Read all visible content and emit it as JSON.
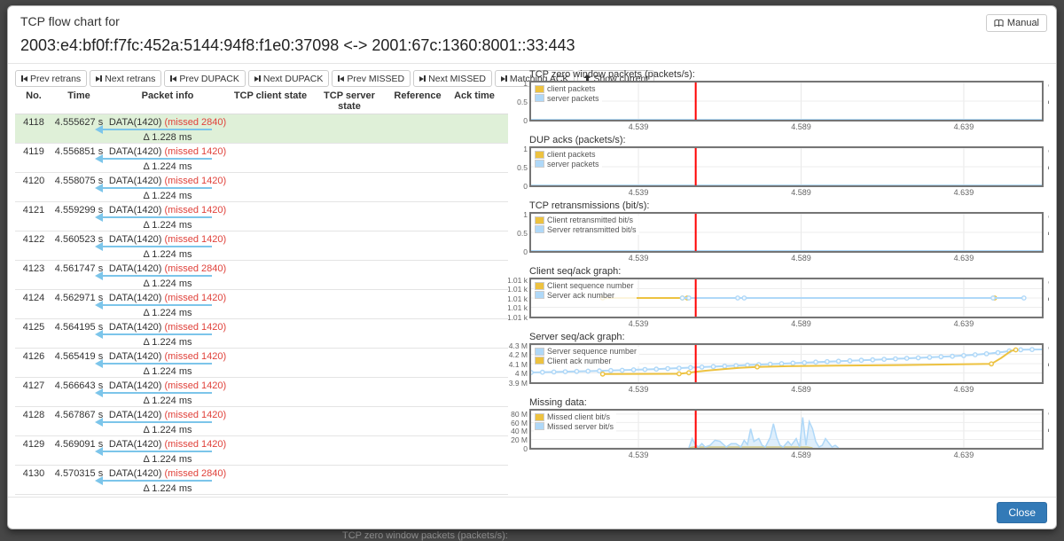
{
  "window": {
    "title": "TCP flow chart for",
    "flow": "2003:e4:bf0f:f7fc:452a:5144:94f8:f1e0:37098 <-> 2001:67c:1360:8001::33:443",
    "manual_label": "Manual",
    "close_label": "Close"
  },
  "background_text": "TCP zero window packets (packets/s):",
  "colors": {
    "accent_blue": "#337ab7",
    "missed_red": "#e0413a",
    "arrow_blue": "#7cc5ea",
    "row_highlight": "#dff0d8",
    "marking_red": "#ff0000",
    "series_yellow": "#edc240",
    "series_blue": "#afd8f8"
  },
  "toolbar": {
    "buttons": [
      {
        "label": "Prev retrans",
        "icon": "step-backward"
      },
      {
        "label": "Next retrans",
        "icon": "step-forward"
      },
      {
        "label": "Prev DUPACK",
        "icon": "step-backward"
      },
      {
        "label": "Next DUPACK",
        "icon": "step-forward"
      },
      {
        "label": "Prev MISSED",
        "icon": "step-backward"
      },
      {
        "label": "Next MISSED",
        "icon": "step-forward"
      },
      {
        "label": "Matching ACK",
        "icon": "step-forward"
      },
      {
        "label": "Show current",
        "icon": "arrow-up"
      }
    ]
  },
  "table": {
    "columns": [
      "No.",
      "Time",
      "Packet info",
      "TCP client state",
      "TCP server state",
      "Reference",
      "Ack time"
    ],
    "rows": [
      {
        "no": "4118",
        "time": "4.555627 s",
        "data": "DATA(1420)",
        "missed": "(missed 2840)",
        "delta": "Δ 1.228 ms",
        "highlighted": true
      },
      {
        "no": "4119",
        "time": "4.556851 s",
        "data": "DATA(1420)",
        "missed": "(missed 1420)",
        "delta": "Δ 1.224 ms",
        "highlighted": false
      },
      {
        "no": "4120",
        "time": "4.558075 s",
        "data": "DATA(1420)",
        "missed": "(missed 1420)",
        "delta": "Δ 1.224 ms",
        "highlighted": false
      },
      {
        "no": "4121",
        "time": "4.559299 s",
        "data": "DATA(1420)",
        "missed": "(missed 1420)",
        "delta": "Δ 1.224 ms",
        "highlighted": false
      },
      {
        "no": "4122",
        "time": "4.560523 s",
        "data": "DATA(1420)",
        "missed": "(missed 1420)",
        "delta": "Δ 1.224 ms",
        "highlighted": false
      },
      {
        "no": "4123",
        "time": "4.561747 s",
        "data": "DATA(1420)",
        "missed": "(missed 2840)",
        "delta": "Δ 1.224 ms",
        "highlighted": false
      },
      {
        "no": "4124",
        "time": "4.562971 s",
        "data": "DATA(1420)",
        "missed": "(missed 1420)",
        "delta": "Δ 1.224 ms",
        "highlighted": false
      },
      {
        "no": "4125",
        "time": "4.564195 s",
        "data": "DATA(1420)",
        "missed": "(missed 1420)",
        "delta": "Δ 1.224 ms",
        "highlighted": false
      },
      {
        "no": "4126",
        "time": "4.565419 s",
        "data": "DATA(1420)",
        "missed": "(missed 1420)",
        "delta": "Δ 1.224 ms",
        "highlighted": false
      },
      {
        "no": "4127",
        "time": "4.566643 s",
        "data": "DATA(1420)",
        "missed": "(missed 1420)",
        "delta": "Δ 1.224 ms",
        "highlighted": false
      },
      {
        "no": "4128",
        "time": "4.567867 s",
        "data": "DATA(1420)",
        "missed": "(missed 1420)",
        "delta": "Δ 1.224 ms",
        "highlighted": false
      },
      {
        "no": "4129",
        "time": "4.569091 s",
        "data": "DATA(1420)",
        "missed": "(missed 1420)",
        "delta": "Δ 1.224 ms",
        "highlighted": false
      },
      {
        "no": "4130",
        "time": "4.570315 s",
        "data": "DATA(1420)",
        "missed": "(missed 2840)",
        "delta": "Δ 1.224 ms",
        "highlighted": false
      }
    ]
  },
  "chart_data": [
    {
      "type": "line",
      "title": "TCP zero window packets (packets/s):",
      "x_range": [
        4.506,
        4.663
      ],
      "marking_x": 4.5566,
      "x_ticks": [
        {
          "v": 4.539,
          "label": "4.539"
        },
        {
          "v": 4.589,
          "label": "4.589"
        },
        {
          "v": 4.639,
          "label": "4.639"
        }
      ],
      "y_range": [
        0,
        1
      ],
      "y_ticks": [
        {
          "v": 0,
          "label": "0"
        },
        {
          "v": 0.5,
          "label": "0.5"
        },
        {
          "v": 1,
          "label": "1"
        }
      ],
      "legend_position": "top-left",
      "grid": true,
      "series": [
        {
          "name": "client packets",
          "color": "#edc240",
          "type": "line",
          "points": [
            [
              4.506,
              0
            ],
            [
              4.663,
              0
            ]
          ]
        },
        {
          "name": "server packets",
          "color": "#afd8f8",
          "type": "line",
          "points": [
            [
              4.506,
              0
            ],
            [
              4.663,
              0
            ]
          ]
        }
      ]
    },
    {
      "type": "line",
      "title": "DUP acks (packets/s):",
      "x_range": [
        4.506,
        4.663
      ],
      "marking_x": 4.5566,
      "x_ticks": [
        {
          "v": 4.539,
          "label": "4.539"
        },
        {
          "v": 4.589,
          "label": "4.589"
        },
        {
          "v": 4.639,
          "label": "4.639"
        }
      ],
      "y_range": [
        0,
        1
      ],
      "y_ticks": [
        {
          "v": 0,
          "label": "0"
        },
        {
          "v": 0.5,
          "label": "0.5"
        },
        {
          "v": 1,
          "label": "1"
        }
      ],
      "legend_position": "top-left",
      "grid": true,
      "series": [
        {
          "name": "client packets",
          "color": "#edc240",
          "type": "line",
          "points": [
            [
              4.506,
              0
            ],
            [
              4.663,
              0
            ]
          ]
        },
        {
          "name": "server packets",
          "color": "#afd8f8",
          "type": "line",
          "points": [
            [
              4.506,
              0
            ],
            [
              4.663,
              0
            ]
          ]
        }
      ]
    },
    {
      "type": "line",
      "title": "TCP retransmissions (bit/s):",
      "x_range": [
        4.506,
        4.663
      ],
      "marking_x": 4.5566,
      "x_ticks": [
        {
          "v": 4.539,
          "label": "4.539"
        },
        {
          "v": 4.589,
          "label": "4.589"
        },
        {
          "v": 4.639,
          "label": "4.639"
        }
      ],
      "y_range": [
        0,
        1
      ],
      "y_ticks": [
        {
          "v": 0,
          "label": "0"
        },
        {
          "v": 0.5,
          "label": "0.5"
        },
        {
          "v": 1,
          "label": "1"
        }
      ],
      "legend_position": "top-left",
      "grid": true,
      "series": [
        {
          "name": "Client retransmitted bit/s",
          "color": "#edc240",
          "type": "line",
          "points": [
            [
              4.506,
              0
            ],
            [
              4.663,
              0
            ]
          ]
        },
        {
          "name": "Server retransmitted bit/s",
          "color": "#afd8f8",
          "type": "line",
          "points": [
            [
              4.506,
              0
            ],
            [
              4.663,
              0
            ]
          ]
        }
      ]
    },
    {
      "type": "line",
      "title": "Client seq/ack graph:",
      "x_range": [
        4.506,
        4.663
      ],
      "marking_x": 4.5566,
      "x_ticks": [
        {
          "v": 4.539,
          "label": "4.539"
        },
        {
          "v": 4.589,
          "label": "4.589"
        },
        {
          "v": 4.639,
          "label": "4.639"
        }
      ],
      "y_range": [
        0,
        4
      ],
      "y_ticks": [
        {
          "v": 0,
          "label": "1.01 k"
        },
        {
          "v": 1,
          "label": "1.01 k"
        },
        {
          "v": 2,
          "label": "1.01 k"
        },
        {
          "v": 3,
          "label": "1.01 k"
        },
        {
          "v": 4,
          "label": "1.01 k"
        }
      ],
      "legend_position": "top-left",
      "grid": true,
      "series": [
        {
          "name": "Client sequence number",
          "color": "#edc240",
          "type": "line",
          "points": [
            [
              4.528,
              2
            ],
            [
              4.6485,
              2
            ]
          ],
          "marker_xs": [
            4.528,
            4.5525,
            4.554,
            4.6485
          ]
        },
        {
          "name": "Server ack number",
          "color": "#afd8f8",
          "type": "line",
          "points": [
            [
              4.5525,
              2
            ],
            [
              4.6575,
              2
            ]
          ],
          "marker_xs": [
            4.5525,
            4.5545,
            4.5695,
            4.5715,
            4.648,
            4.6575
          ]
        }
      ]
    },
    {
      "type": "line",
      "title": "Server seq/ack graph:",
      "x_range": [
        4.506,
        4.663
      ],
      "marking_x": 4.5566,
      "x_ticks": [
        {
          "v": 4.539,
          "label": "4.539"
        },
        {
          "v": 4.589,
          "label": "4.589"
        },
        {
          "v": 4.639,
          "label": "4.639"
        }
      ],
      "y_range": [
        3.9,
        4.3
      ],
      "y_ticks": [
        {
          "v": 3.9,
          "label": "3.9 M"
        },
        {
          "v": 4.0,
          "label": "4 M"
        },
        {
          "v": 4.1,
          "label": "4.1 M"
        },
        {
          "v": 4.2,
          "label": "4.2 M"
        },
        {
          "v": 4.3,
          "label": "4.3 M"
        }
      ],
      "legend_position": "top-left",
      "grid": true,
      "series": [
        {
          "name": "Server sequence number",
          "color": "#afd8f8",
          "type": "line",
          "marker_step": 0.0035,
          "points": [
            [
              4.506,
              4.005
            ],
            [
              4.515,
              4.012
            ],
            [
              4.525,
              4.02
            ],
            [
              4.535,
              4.03
            ],
            [
              4.545,
              4.042
            ],
            [
              4.5555,
              4.058
            ],
            [
              4.565,
              4.072
            ],
            [
              4.575,
              4.088
            ],
            [
              4.585,
              4.103
            ],
            [
              4.595,
              4.118
            ],
            [
              4.605,
              4.132
            ],
            [
              4.615,
              4.147
            ],
            [
              4.625,
              4.162
            ],
            [
              4.635,
              4.178
            ],
            [
              4.6425,
              4.195
            ],
            [
              4.6475,
              4.21
            ],
            [
              4.651,
              4.225
            ],
            [
              4.654,
              4.242
            ],
            [
              4.657,
              4.25
            ],
            [
              4.663,
              4.252
            ]
          ]
        },
        {
          "name": "Client ack number",
          "color": "#edc240",
          "type": "line",
          "marker_xs": [
            4.528,
            4.5515,
            4.5545,
            4.5755,
            4.6475,
            4.655
          ],
          "points": [
            [
              4.528,
              3.988
            ],
            [
              4.5515,
              3.99
            ],
            [
              4.5545,
              4.002
            ],
            [
              4.5565,
              4.012
            ],
            [
              4.56,
              4.025
            ],
            [
              4.565,
              4.04
            ],
            [
              4.57,
              4.055
            ],
            [
              4.5755,
              4.065
            ],
            [
              4.585,
              4.072
            ],
            [
              4.6,
              4.078
            ],
            [
              4.62,
              4.085
            ],
            [
              4.6375,
              4.092
            ],
            [
              4.6475,
              4.097
            ],
            [
              4.6505,
              4.16
            ],
            [
              4.6535,
              4.235
            ],
            [
              4.655,
              4.248
            ]
          ]
        }
      ]
    },
    {
      "type": "area",
      "title": "Missing data:",
      "x_range": [
        4.506,
        4.663
      ],
      "marking_x": 4.5566,
      "x_ticks": [
        {
          "v": 4.539,
          "label": "4.539"
        },
        {
          "v": 4.589,
          "label": "4.589"
        },
        {
          "v": 4.639,
          "label": "4.639"
        }
      ],
      "y_range": [
        0,
        88
      ],
      "y_ticks": [
        {
          "v": 0,
          "label": "0"
        },
        {
          "v": 20,
          "label": "20 M"
        },
        {
          "v": 40,
          "label": "40 M"
        },
        {
          "v": 60,
          "label": "60 M"
        },
        {
          "v": 80,
          "label": "80 M"
        }
      ],
      "legend_position": "top-left",
      "grid": true,
      "series": [
        {
          "name": "Missed client bit/s",
          "color": "#edc240",
          "type": "area",
          "points": [
            [
              4.5545,
              0
            ],
            [
              4.556,
              2.2
            ],
            [
              4.591,
              2.2
            ],
            [
              4.5925,
              0
            ]
          ]
        },
        {
          "name": "Missed server bit/s",
          "color": "#afd8f8",
          "type": "area",
          "points": [
            [
              4.5545,
              0
            ],
            [
              4.5555,
              22
            ],
            [
              4.5565,
              8
            ],
            [
              4.5575,
              2
            ],
            [
              4.5585,
              10
            ],
            [
              4.5595,
              2
            ],
            [
              4.561,
              6
            ],
            [
              4.5625,
              18
            ],
            [
              4.564,
              16
            ],
            [
              4.566,
              2
            ],
            [
              4.5675,
              10
            ],
            [
              4.569,
              10
            ],
            [
              4.5705,
              2
            ],
            [
              4.5715,
              18
            ],
            [
              4.5725,
              8
            ],
            [
              4.5735,
              45
            ],
            [
              4.5745,
              15
            ],
            [
              4.576,
              22
            ],
            [
              4.577,
              6
            ],
            [
              4.578,
              2
            ],
            [
              4.5795,
              25
            ],
            [
              4.5805,
              57
            ],
            [
              4.5815,
              25
            ],
            [
              4.5825,
              6
            ],
            [
              4.5835,
              2
            ],
            [
              4.585,
              15
            ],
            [
              4.586,
              6
            ],
            [
              4.5875,
              22
            ],
            [
              4.5885,
              2
            ],
            [
              4.5895,
              72
            ],
            [
              4.5905,
              6
            ],
            [
              4.5915,
              62
            ],
            [
              4.5925,
              45
            ],
            [
              4.5935,
              15
            ],
            [
              4.5945,
              2
            ],
            [
              4.5955,
              6
            ],
            [
              4.5965,
              22
            ],
            [
              4.5975,
              12
            ],
            [
              4.5985,
              2
            ],
            [
              4.5995,
              6
            ],
            [
              4.6005,
              0
            ]
          ]
        }
      ]
    }
  ]
}
